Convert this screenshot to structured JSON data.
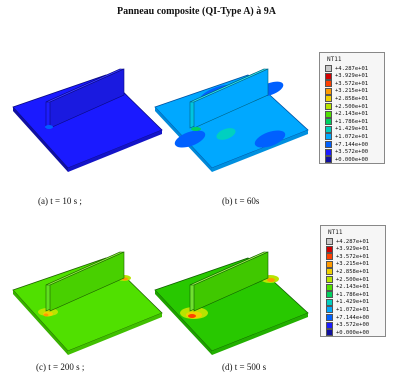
{
  "figure": {
    "title": "Panneau composite (QI-Type A) à 9A"
  },
  "panels": [
    {
      "id": "a",
      "caption": "(a) t = 10 s ;",
      "state": "initial"
    },
    {
      "id": "b",
      "caption": "(b) t = 60s",
      "state": "early"
    },
    {
      "id": "c",
      "caption": "(c) t = 200 s ;",
      "state": "mid"
    },
    {
      "id": "d",
      "caption": "(d) t = 500 s",
      "state": "late"
    }
  ],
  "legends": [
    {
      "id": "top",
      "title": "NT11",
      "values": [
        "+4.287e+01",
        "+3.929e+01",
        "+3.572e+01",
        "+3.215e+01",
        "+2.858e+01",
        "+2.500e+01",
        "+2.143e+01",
        "+1.786e+01",
        "+1.429e+01",
        "+1.072e+01",
        "+7.144e+00",
        "+3.572e+00",
        "+0.000e+00"
      ]
    },
    {
      "id": "bottom",
      "title": "NT11",
      "values": [
        "+4.287e+01",
        "+3.929e+01",
        "+3.572e+01",
        "+3.215e+01",
        "+2.858e+01",
        "+2.500e+01",
        "+2.143e+01",
        "+1.786e+01",
        "+1.429e+01",
        "+1.072e+01",
        "+7.144e+00",
        "+3.572e+00",
        "+0.000e+00"
      ]
    }
  ],
  "colors": {
    "scale": [
      "#c8c8c8",
      "#d40000",
      "#ff4000",
      "#ff9a00",
      "#f0d000",
      "#b8e400",
      "#50e000",
      "#00d060",
      "#00d0c0",
      "#00a8ff",
      "#0060ff",
      "#1a1aff",
      "#1010a0"
    ]
  }
}
